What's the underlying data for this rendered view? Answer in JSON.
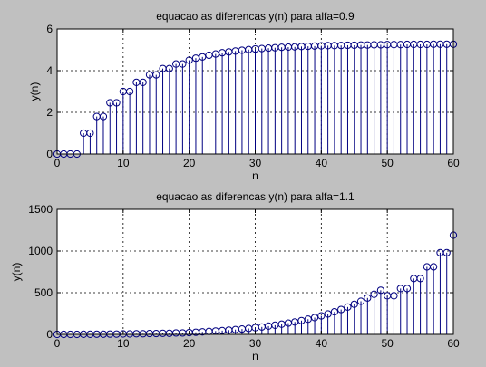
{
  "figure": {
    "background": "#c0c0c0"
  },
  "chart_data": [
    {
      "type": "stem",
      "title": "equacao as diferencas y(n) para alfa=0.9",
      "xlabel": "n",
      "ylabel": "y(n)",
      "xlim": [
        0,
        60
      ],
      "ylim": [
        0,
        6
      ],
      "xticks": [
        0,
        10,
        20,
        30,
        40,
        50,
        60
      ],
      "yticks": [
        0,
        2,
        4,
        6
      ],
      "grid": true,
      "color": "#000080",
      "series": [
        {
          "x": [
            0,
            1,
            2,
            3,
            4,
            5,
            6,
            7,
            8,
            9,
            10,
            11,
            12,
            13,
            14,
            15,
            16,
            17,
            18,
            19,
            20,
            21,
            22,
            23,
            24,
            25,
            26,
            27,
            28,
            29,
            30,
            31,
            32,
            33,
            34,
            35,
            36,
            37,
            38,
            39,
            40,
            41,
            42,
            43,
            44,
            45,
            46,
            47,
            48,
            49,
            50,
            51,
            52,
            53,
            54,
            55,
            56,
            57,
            58,
            59,
            60
          ],
          "y": [
            0,
            0,
            0,
            0,
            1,
            1,
            1.8,
            1.8,
            2.46,
            2.46,
            3.0,
            3.0,
            3.44,
            3.44,
            3.8,
            3.8,
            4.1,
            4.1,
            4.32,
            4.32,
            4.5,
            4.6,
            4.66,
            4.74,
            4.8,
            4.86,
            4.9,
            4.94,
            4.98,
            5.01,
            5.04,
            5.06,
            5.08,
            5.1,
            5.12,
            5.13,
            5.14,
            5.16,
            5.17,
            5.18,
            5.19,
            5.2,
            5.2,
            5.21,
            5.22,
            5.22,
            5.23,
            5.23,
            5.24,
            5.24,
            5.25,
            5.25,
            5.25,
            5.26,
            5.26,
            5.26,
            5.26,
            5.27,
            5.27,
            5.27,
            5.27
          ]
        }
      ]
    },
    {
      "type": "stem",
      "title": "equacao as diferencas y(n) para alfa=1.1",
      "xlabel": "n",
      "ylabel": "y(n)",
      "xlim": [
        0,
        60
      ],
      "ylim": [
        0,
        1500
      ],
      "xticks": [
        0,
        10,
        20,
        30,
        40,
        50,
        60
      ],
      "yticks": [
        0,
        500,
        1000,
        1500
      ],
      "grid": true,
      "color": "#000080",
      "series": [
        {
          "x": [
            0,
            1,
            2,
            3,
            4,
            5,
            6,
            7,
            8,
            9,
            10,
            11,
            12,
            13,
            14,
            15,
            16,
            17,
            18,
            19,
            20,
            21,
            22,
            23,
            24,
            25,
            26,
            27,
            28,
            29,
            30,
            31,
            32,
            33,
            34,
            35,
            36,
            37,
            38,
            39,
            40,
            41,
            42,
            43,
            44,
            45,
            46,
            47,
            48,
            49,
            50,
            51,
            52,
            53,
            54,
            55,
            56,
            57,
            58,
            59,
            60
          ],
          "y": [
            0,
            0,
            0,
            0,
            1,
            1,
            2.2,
            2.2,
            3.6,
            3.6,
            5.4,
            5.4,
            7.5,
            7.5,
            10,
            10,
            13,
            13,
            17,
            17,
            21,
            25,
            30,
            35,
            40,
            45,
            51,
            57,
            64,
            71,
            80,
            89,
            99,
            110,
            122,
            135,
            149,
            165,
            182,
            201,
            222,
            245,
            270,
            298,
            328,
            361,
            397,
            437,
            481,
            529,
            463,
            463,
            550,
            550,
            670,
            670,
            810,
            810,
            980,
            980,
            1190
          ]
        }
      ]
    }
  ]
}
